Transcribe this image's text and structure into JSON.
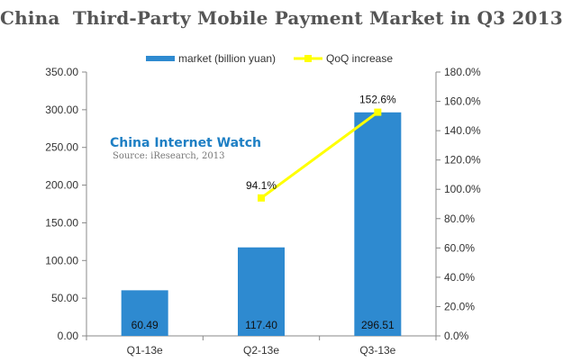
{
  "chart_data": {
    "type": "bar",
    "title": "China  Third-Party Mobile Payment Market in Q3 2013",
    "categories": [
      "Q1-13e",
      "Q2-13e",
      "Q3-13e"
    ],
    "series": [
      {
        "name": "market (billion yuan)",
        "kind": "bar",
        "axis": "left",
        "color": "#2e8ad0",
        "values": [
          60.49,
          117.4,
          296.51
        ],
        "value_labels": [
          "60.49",
          "117.40",
          "296.51"
        ]
      },
      {
        "name": "QoQ increase",
        "kind": "line",
        "axis": "right",
        "color": "#ffff00",
        "values": [
          null,
          94.1,
          152.6
        ],
        "value_labels": [
          "",
          "94.1%",
          "152.6%"
        ]
      }
    ],
    "left_axis": {
      "ylim": [
        0,
        350
      ],
      "ticks": [
        "0.00",
        "50.00",
        "100.00",
        "150.00",
        "200.00",
        "250.00",
        "300.00",
        "350.00"
      ]
    },
    "right_axis": {
      "ylim": [
        0,
        180
      ],
      "ticks": [
        "0.0%",
        "20.0%",
        "40.0%",
        "60.0%",
        "80.0%",
        "100.0%",
        "120.0%",
        "140.0%",
        "160.0%",
        "180.0%"
      ]
    },
    "legend_position": "top",
    "grid": false
  },
  "watermark": {
    "name": "China Internet Watch",
    "source": "Source: iResearch, 2013"
  }
}
